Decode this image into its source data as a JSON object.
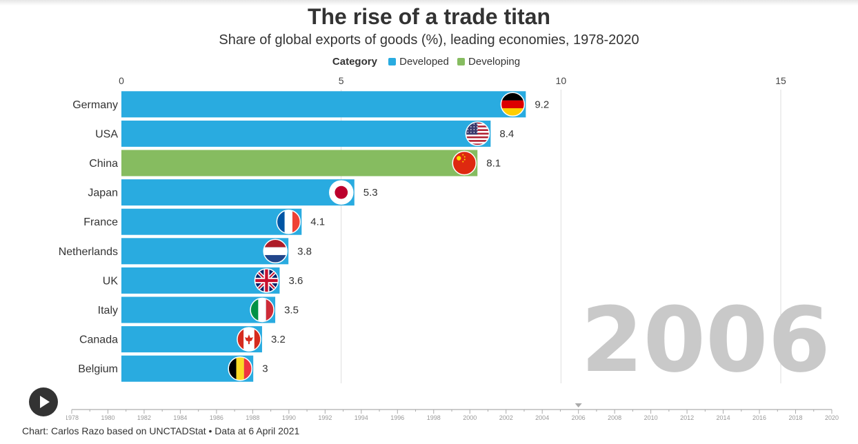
{
  "title": "The rise of a trade titan",
  "subtitle": "Share of global exports of goods (%), leading economies, 1978-2020",
  "legend": {
    "title": "Category",
    "items": [
      {
        "label": "Developed",
        "color": "#29abe0"
      },
      {
        "label": "Developing",
        "color": "#86bc60"
      }
    ]
  },
  "chart_data": {
    "type": "bar",
    "orientation": "horizontal",
    "current_year": "2006",
    "x_ticks": [
      0,
      5,
      10,
      15
    ],
    "xlim": [
      0,
      15
    ],
    "grid": true,
    "categories": [
      "Germany",
      "USA",
      "China",
      "Japan",
      "France",
      "Netherlands",
      "UK",
      "Italy",
      "Canada",
      "Belgium"
    ],
    "values": [
      9.2,
      8.4,
      8.1,
      5.3,
      4.1,
      3.8,
      3.6,
      3.5,
      3.2,
      3
    ],
    "value_labels": [
      "9.2",
      "8.4",
      "8.1",
      "5.3",
      "4.1",
      "3.8",
      "3.6",
      "3.5",
      "3.2",
      "3"
    ],
    "category_group": [
      "Developed",
      "Developed",
      "Developing",
      "Developed",
      "Developed",
      "Developed",
      "Developed",
      "Developed",
      "Developed",
      "Developed"
    ],
    "flags": [
      "germany-flag",
      "usa-flag",
      "china-flag",
      "japan-flag",
      "france-flag",
      "netherlands-flag",
      "uk-flag",
      "italy-flag",
      "canada-flag",
      "belgium-flag"
    ]
  },
  "timeline": {
    "years": [
      "1978",
      "1980",
      "1982",
      "1984",
      "1986",
      "1988",
      "1990",
      "1992",
      "1994",
      "1996",
      "1998",
      "2000",
      "2002",
      "2004",
      "2006",
      "2008",
      "2010",
      "2012",
      "2014",
      "2016",
      "2018",
      "2020"
    ],
    "current": "2006"
  },
  "controls": {
    "play_icon": "play-icon"
  },
  "source": "Chart: Carlos Razo based on UNCTADStat • Data at 6 April 2021"
}
